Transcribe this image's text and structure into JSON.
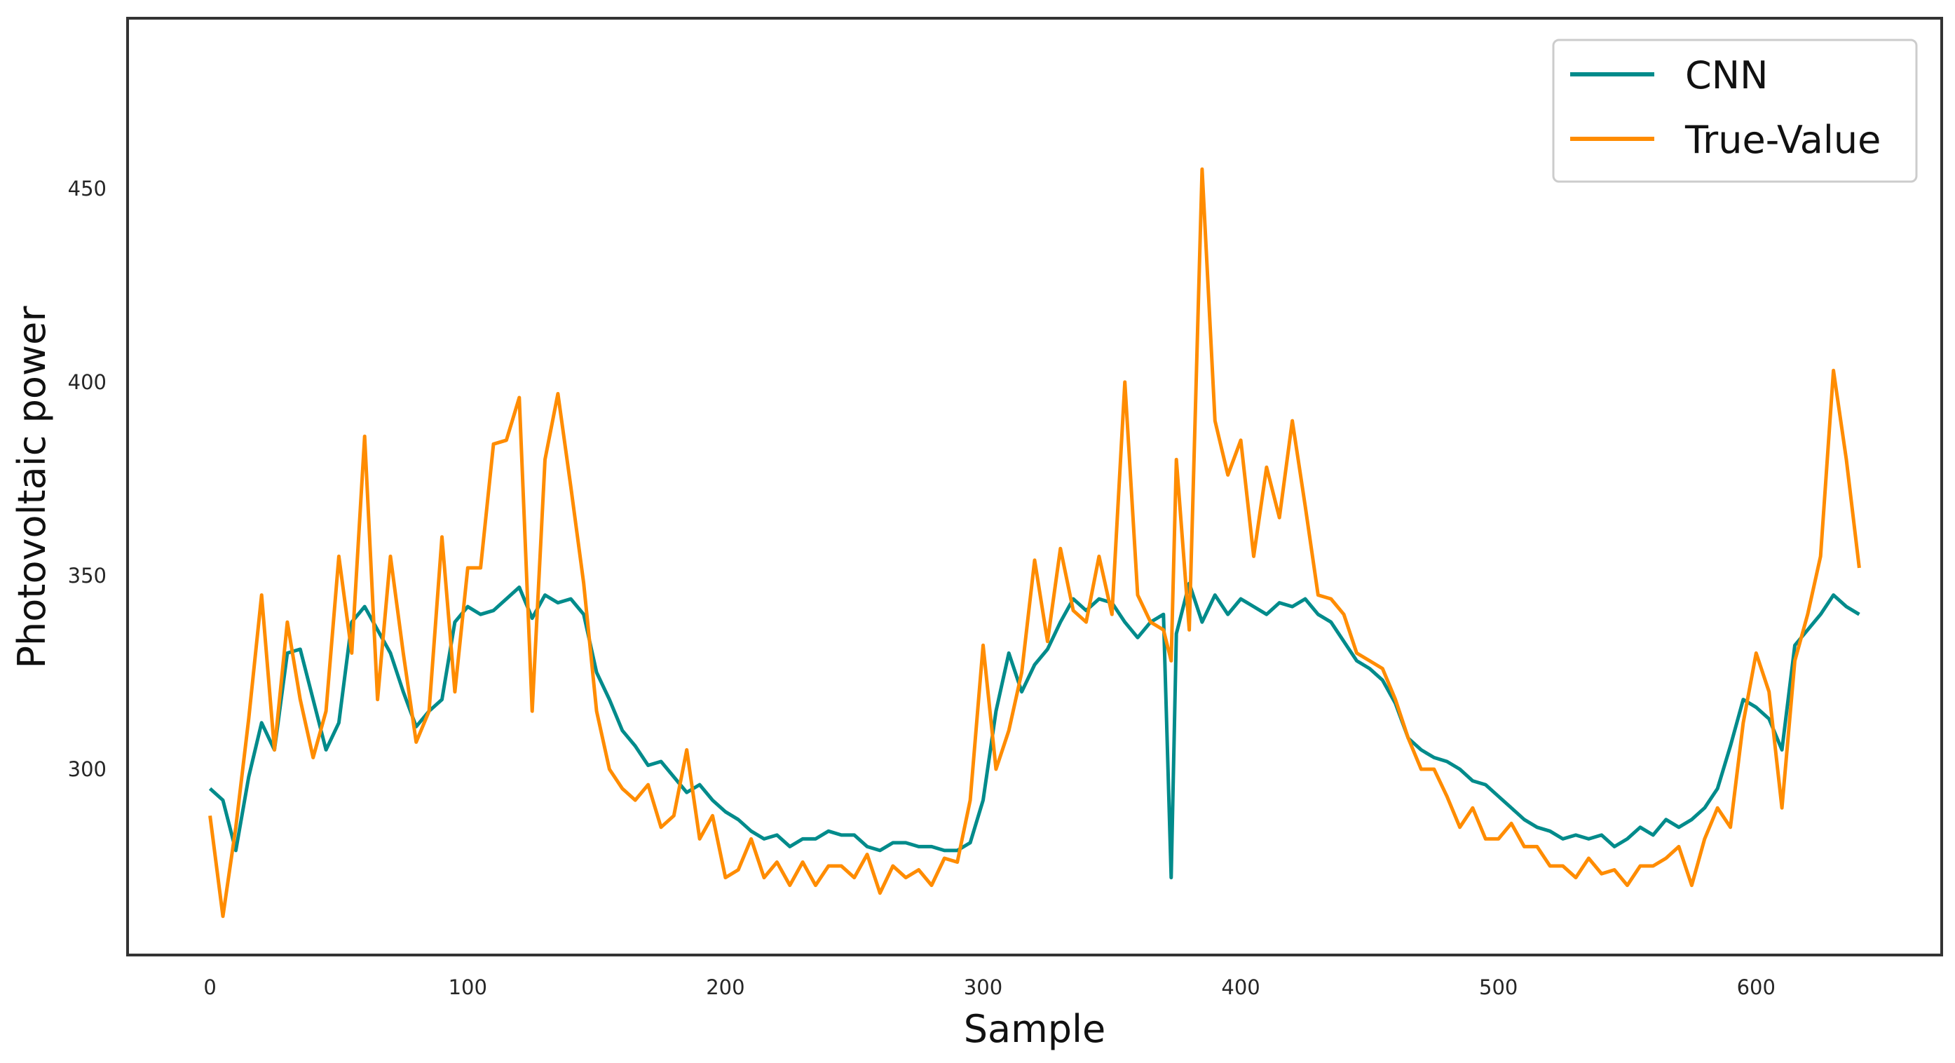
{
  "chart_data": {
    "type": "line",
    "title": "",
    "xlabel": "Sample",
    "ylabel": "Photovoltaic power",
    "xlim": [
      -32,
      672
    ],
    "ylim": [
      252,
      494
    ],
    "xticks": [
      0,
      100,
      200,
      300,
      400,
      500,
      600
    ],
    "yticks": [
      300,
      350,
      400,
      450
    ],
    "grid": false,
    "legend_position": "top-right",
    "x": [
      0,
      5,
      10,
      15,
      20,
      25,
      30,
      35,
      40,
      45,
      50,
      55,
      60,
      65,
      70,
      75,
      80,
      85,
      90,
      95,
      100,
      105,
      110,
      115,
      120,
      125,
      130,
      135,
      140,
      145,
      150,
      155,
      160,
      165,
      170,
      175,
      180,
      185,
      190,
      195,
      200,
      205,
      210,
      215,
      220,
      225,
      230,
      235,
      240,
      245,
      250,
      255,
      260,
      265,
      270,
      275,
      280,
      285,
      290,
      295,
      300,
      305,
      310,
      315,
      320,
      325,
      330,
      335,
      340,
      345,
      350,
      355,
      360,
      365,
      370,
      373,
      375,
      380,
      385,
      390,
      395,
      400,
      405,
      410,
      415,
      420,
      425,
      430,
      435,
      440,
      445,
      450,
      455,
      460,
      465,
      470,
      475,
      480,
      485,
      490,
      495,
      500,
      505,
      510,
      515,
      520,
      525,
      530,
      535,
      540,
      545,
      550,
      555,
      560,
      565,
      570,
      575,
      580,
      585,
      590,
      595,
      600,
      605,
      610,
      615,
      620,
      625,
      630,
      635,
      640
    ],
    "series": [
      {
        "name": "CNN",
        "color": "#008b8b",
        "values": [
          295,
          292,
          279,
          298,
          312,
          305,
          330,
          331,
          318,
          305,
          312,
          338,
          342,
          336,
          330,
          320,
          311,
          315,
          318,
          338,
          342,
          340,
          341,
          344,
          347,
          339,
          345,
          343,
          344,
          340,
          325,
          318,
          310,
          306,
          301,
          302,
          298,
          294,
          296,
          292,
          289,
          287,
          284,
          282,
          283,
          280,
          282,
          282,
          284,
          283,
          283,
          280,
          279,
          281,
          281,
          280,
          280,
          279,
          279,
          281,
          292,
          315,
          330,
          320,
          327,
          331,
          338,
          344,
          341,
          344,
          343,
          338,
          334,
          338,
          340,
          272,
          335,
          348,
          338,
          345,
          340,
          344,
          342,
          340,
          343,
          342,
          344,
          340,
          338,
          333,
          328,
          326,
          323,
          317,
          308,
          305,
          303,
          302,
          300,
          297,
          296,
          293,
          290,
          287,
          285,
          284,
          282,
          283,
          282,
          283,
          280,
          282,
          285,
          283,
          287,
          285,
          287,
          290,
          295,
          306,
          318,
          316,
          313,
          305,
          332,
          336,
          340,
          345,
          342,
          340
        ]
      },
      {
        "name": "True-Value",
        "color": "#ff8c00",
        "values": [
          288,
          262,
          285,
          313,
          345,
          305,
          338,
          318,
          303,
          315,
          355,
          330,
          386,
          318,
          355,
          330,
          307,
          315,
          360,
          320,
          352,
          352,
          384,
          385,
          396,
          315,
          380,
          397,
          373,
          348,
          315,
          300,
          295,
          292,
          296,
          285,
          288,
          305,
          282,
          288,
          272,
          274,
          282,
          272,
          276,
          270,
          276,
          270,
          275,
          275,
          272,
          278,
          268,
          275,
          272,
          274,
          270,
          277,
          276,
          292,
          332,
          300,
          310,
          325,
          354,
          333,
          357,
          341,
          338,
          355,
          340,
          400,
          345,
          338,
          336,
          328,
          380,
          336,
          455,
          390,
          376,
          385,
          355,
          378,
          365,
          390,
          368,
          345,
          344,
          340,
          330,
          328,
          326,
          318,
          308,
          300,
          300,
          293,
          285,
          290,
          282,
          282,
          286,
          280,
          280,
          275,
          275,
          272,
          277,
          273,
          274,
          270,
          275,
          275,
          277,
          280,
          270,
          282,
          290,
          285,
          312,
          330,
          320,
          290,
          328,
          340,
          355,
          403,
          380,
          352
        ]
      }
    ]
  }
}
